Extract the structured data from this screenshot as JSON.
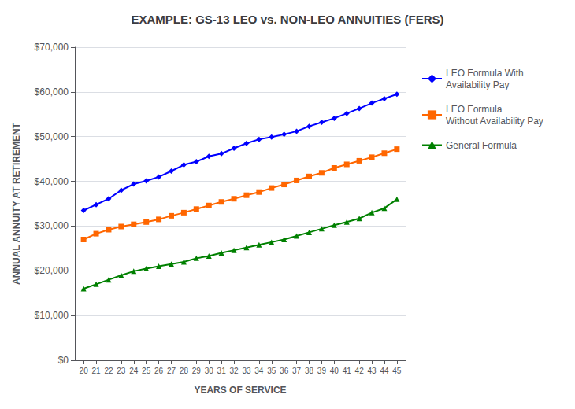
{
  "chart_data": {
    "type": "line",
    "title": "EXAMPLE: GS-13 LEO vs. NON-LEO ANNUITIES (FERS)",
    "xlabel": "YEARS OF SERVICE",
    "ylabel": "ANNUAL ANNUITY AT RETIREMENT",
    "x": [
      20,
      21,
      22,
      23,
      24,
      25,
      26,
      27,
      28,
      29,
      30,
      31,
      32,
      33,
      34,
      35,
      36,
      37,
      38,
      39,
      40,
      41,
      42,
      43,
      44,
      45
    ],
    "series": [
      {
        "name": "LEO Formula With\nAvailability Pay",
        "color": "#0000FF",
        "marker": "diamond",
        "values": [
          33500,
          34800,
          36100,
          38000,
          39400,
          40100,
          41000,
          42300,
          43700,
          44400,
          45600,
          46200,
          47400,
          48500,
          49400,
          49900,
          50500,
          51200,
          52300,
          53200,
          54100,
          55200,
          56300,
          57500,
          58500,
          59500
        ]
      },
      {
        "name": "LEO Formula\nWithout Availability Pay",
        "color": "#FF6600",
        "marker": "square",
        "values": [
          27000,
          28300,
          29200,
          29900,
          30400,
          30900,
          31500,
          32300,
          33000,
          33800,
          34600,
          35400,
          36100,
          36900,
          37600,
          38500,
          39300,
          40200,
          41100,
          41900,
          43000,
          43800,
          44600,
          45400,
          46300,
          47200
        ]
      },
      {
        "name": "General Formula",
        "color": "#008000",
        "marker": "triangle",
        "values": [
          16000,
          17000,
          18000,
          19000,
          19900,
          20500,
          21000,
          21500,
          22000,
          22800,
          23300,
          24000,
          24600,
          25200,
          25800,
          26400,
          27000,
          27800,
          28600,
          29400,
          30200,
          30900,
          31700,
          33000,
          34000,
          36000
        ]
      }
    ],
    "xlim": [
      19.3,
      45.7
    ],
    "xticks": [
      20,
      21,
      22,
      23,
      24,
      25,
      26,
      27,
      28,
      29,
      30,
      31,
      32,
      33,
      34,
      35,
      36,
      37,
      38,
      39,
      40,
      41,
      42,
      43,
      44,
      45
    ],
    "ylim": [
      0,
      70000
    ],
    "yticks": [
      {
        "value": 0,
        "label": "$0"
      },
      {
        "value": 10000,
        "label": "$10,000"
      },
      {
        "value": 20000,
        "label": "$20,000"
      },
      {
        "value": 30000,
        "label": "$30,000"
      },
      {
        "value": 40000,
        "label": "$40,000"
      },
      {
        "value": 50000,
        "label": "$50,000"
      },
      {
        "value": 60000,
        "label": "$60,000"
      },
      {
        "value": 70000,
        "label": "$70,000"
      }
    ],
    "grid": true,
    "legend": "right"
  }
}
